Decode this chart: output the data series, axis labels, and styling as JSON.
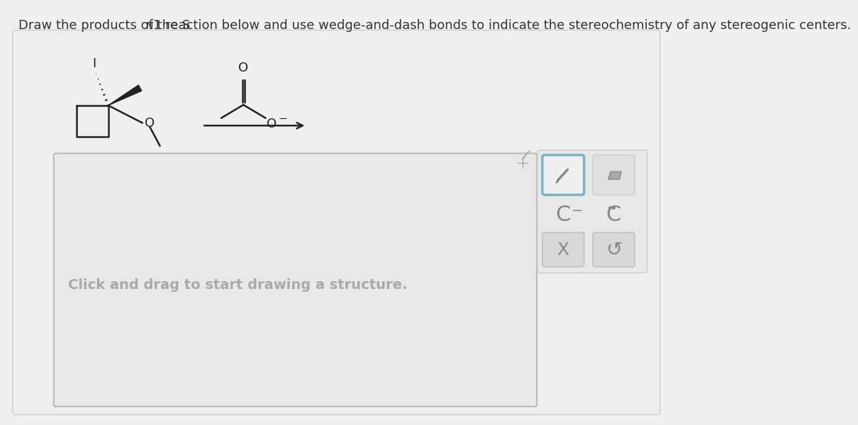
{
  "title_part1": "Draw the products of the S",
  "title_sub": "N",
  "title_part2": "1 reaction below and use wedge-and-dash bonds to indicate the stereochemistry of any stereogenic centers.",
  "bg_color": "#f0f0f0",
  "panel_bg": "#efefef",
  "draw_box_bg": "#e8e8e8",
  "text_color": "#333333",
  "light_blue": "#7ab3c8",
  "placeholder_text": "Click and drag to start drawing a structure.",
  "placeholder_color": "#aaaaaa",
  "bond_color": "#222222"
}
